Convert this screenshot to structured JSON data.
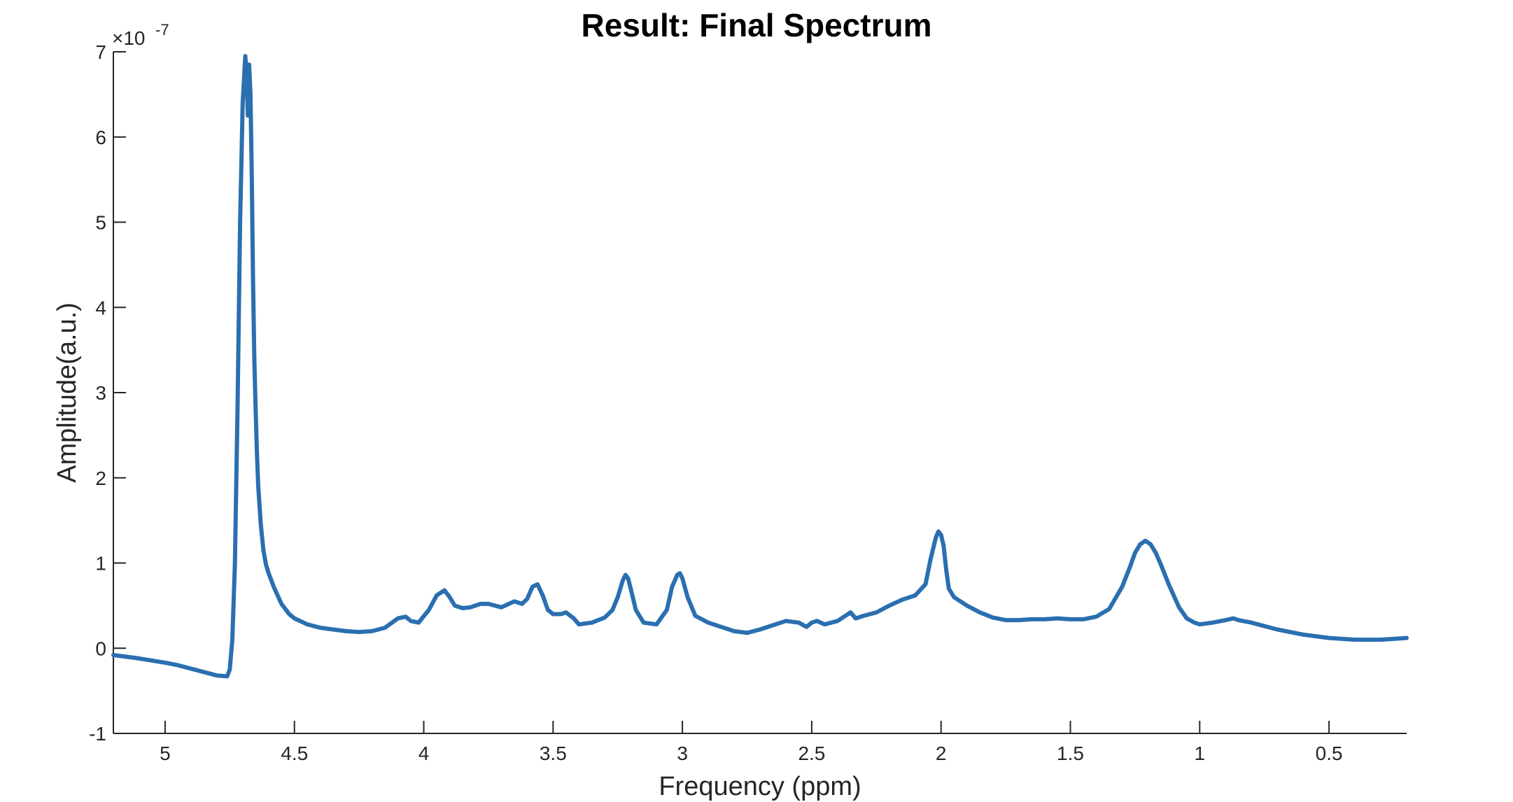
{
  "figure": {
    "title": "Result: Final Spectrum"
  },
  "chart_data": {
    "type": "line",
    "title": "Result: Final Spectrum",
    "xlabel": "Frequency (ppm)",
    "ylabel": "Amplitude(a.u.)",
    "y_exponent_label": "×10",
    "y_exponent": "-7",
    "xlim": [
      5.2,
      0.2
    ],
    "x_reversed": true,
    "ylim": [
      -1,
      7
    ],
    "y_scale": 1e-07,
    "xticks": [
      5,
      4.5,
      4,
      3.5,
      3,
      2.5,
      2,
      1.5,
      1,
      0.5
    ],
    "xtick_labels": [
      "5",
      "4.5",
      "4",
      "3.5",
      "3",
      "2.5",
      "2",
      "1.5",
      "1",
      "0.5"
    ],
    "yticks": [
      -1,
      0,
      1,
      2,
      3,
      4,
      5,
      6,
      7
    ],
    "ytick_labels": [
      "-1",
      "0",
      "1",
      "2",
      "3",
      "4",
      "5",
      "6",
      "7"
    ],
    "grid": false,
    "line_color": "#2a6fb0",
    "series": [
      {
        "x": [
          5.2,
          5.1,
          5.0,
          4.95,
          4.9,
          4.85,
          4.8,
          4.76,
          4.75,
          4.74,
          4.73,
          4.72,
          4.71,
          4.7,
          4.69,
          4.685,
          4.68,
          4.675,
          4.67,
          4.665,
          4.66,
          4.655,
          4.65,
          4.645,
          4.64,
          4.63,
          4.62,
          4.61,
          4.6,
          4.58,
          4.55,
          4.52,
          4.5,
          4.45,
          4.4,
          4.35,
          4.3,
          4.25,
          4.2,
          4.15,
          4.1,
          4.07,
          4.05,
          4.02,
          3.98,
          3.95,
          3.92,
          3.9,
          3.88,
          3.85,
          3.82,
          3.78,
          3.75,
          3.7,
          3.65,
          3.62,
          3.6,
          3.58,
          3.56,
          3.54,
          3.52,
          3.5,
          3.47,
          3.45,
          3.42,
          3.4,
          3.35,
          3.3,
          3.27,
          3.25,
          3.23,
          3.22,
          3.21,
          3.2,
          3.18,
          3.15,
          3.1,
          3.06,
          3.04,
          3.02,
          3.01,
          3.0,
          2.98,
          2.95,
          2.9,
          2.85,
          2.8,
          2.75,
          2.7,
          2.65,
          2.6,
          2.55,
          2.52,
          2.5,
          2.48,
          2.45,
          2.4,
          2.37,
          2.35,
          2.33,
          2.3,
          2.25,
          2.2,
          2.15,
          2.1,
          2.06,
          2.04,
          2.02,
          2.01,
          2.0,
          1.99,
          1.98,
          1.97,
          1.95,
          1.9,
          1.85,
          1.8,
          1.75,
          1.7,
          1.65,
          1.6,
          1.55,
          1.5,
          1.45,
          1.4,
          1.35,
          1.3,
          1.27,
          1.25,
          1.23,
          1.21,
          1.19,
          1.17,
          1.15,
          1.12,
          1.08,
          1.05,
          1.02,
          1.0,
          0.95,
          0.9,
          0.87,
          0.85,
          0.8,
          0.7,
          0.6,
          0.5,
          0.4,
          0.3,
          0.2
        ],
        "y": [
          -0.08,
          -0.12,
          -0.17,
          -0.2,
          -0.24,
          -0.28,
          -0.32,
          -0.33,
          -0.25,
          0.1,
          1.0,
          2.8,
          5.0,
          6.4,
          6.95,
          6.75,
          6.25,
          6.85,
          6.5,
          5.6,
          4.3,
          3.4,
          2.8,
          2.3,
          1.9,
          1.45,
          1.15,
          0.98,
          0.88,
          0.72,
          0.52,
          0.4,
          0.35,
          0.28,
          0.24,
          0.22,
          0.2,
          0.19,
          0.2,
          0.24,
          0.35,
          0.37,
          0.32,
          0.3,
          0.45,
          0.62,
          0.68,
          0.6,
          0.5,
          0.47,
          0.48,
          0.52,
          0.52,
          0.48,
          0.55,
          0.52,
          0.58,
          0.72,
          0.75,
          0.62,
          0.45,
          0.4,
          0.4,
          0.42,
          0.35,
          0.28,
          0.3,
          0.36,
          0.45,
          0.6,
          0.8,
          0.86,
          0.82,
          0.7,
          0.45,
          0.3,
          0.28,
          0.45,
          0.72,
          0.86,
          0.88,
          0.82,
          0.6,
          0.38,
          0.3,
          0.25,
          0.2,
          0.18,
          0.22,
          0.27,
          0.32,
          0.3,
          0.25,
          0.3,
          0.32,
          0.28,
          0.32,
          0.38,
          0.42,
          0.35,
          0.38,
          0.42,
          0.5,
          0.57,
          0.62,
          0.75,
          1.05,
          1.3,
          1.37,
          1.33,
          1.2,
          0.92,
          0.7,
          0.6,
          0.5,
          0.42,
          0.36,
          0.33,
          0.33,
          0.34,
          0.34,
          0.35,
          0.34,
          0.34,
          0.37,
          0.46,
          0.72,
          0.95,
          1.12,
          1.22,
          1.26,
          1.22,
          1.12,
          0.98,
          0.75,
          0.48,
          0.35,
          0.3,
          0.28,
          0.3,
          0.33,
          0.35,
          0.33,
          0.3,
          0.22,
          0.16,
          0.12,
          0.1,
          0.1,
          0.12
        ]
      }
    ]
  }
}
